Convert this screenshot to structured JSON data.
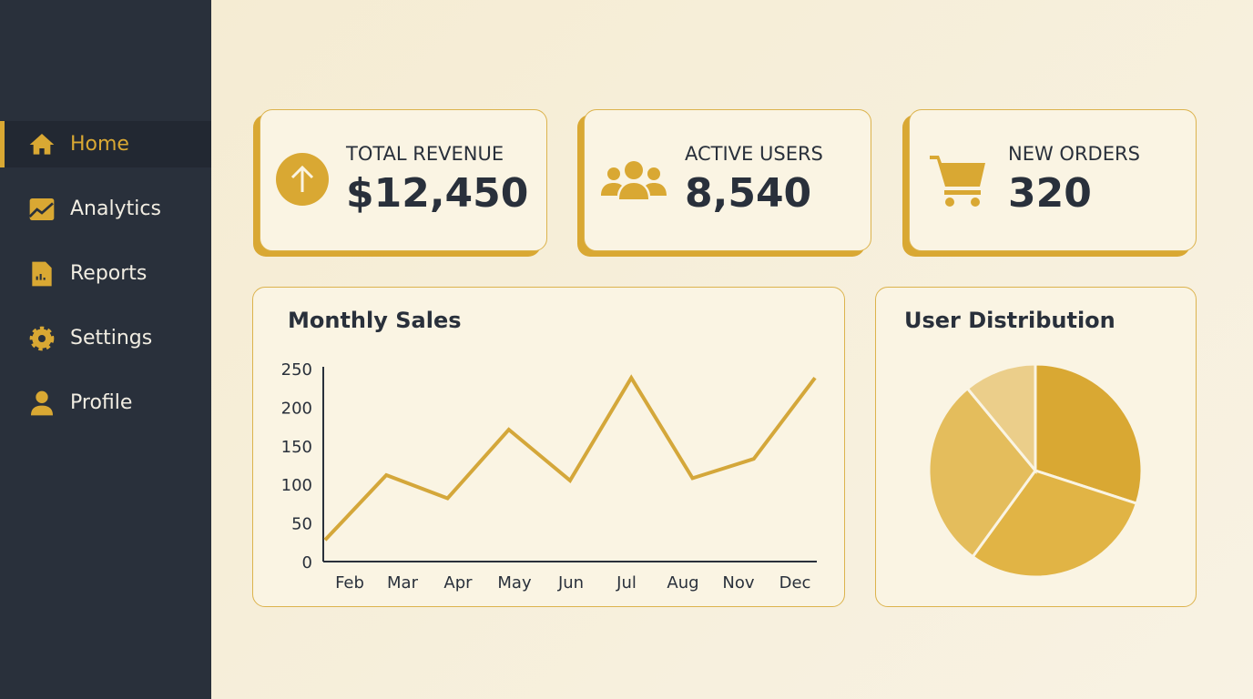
{
  "sidebar": {
    "items": [
      {
        "label": "Home",
        "icon": "home-icon",
        "active": true
      },
      {
        "label": "Analytics",
        "icon": "chart-line-icon"
      },
      {
        "label": "Reports",
        "icon": "report-icon"
      },
      {
        "label": "Settings",
        "icon": "gear-icon"
      },
      {
        "label": "Profile",
        "icon": "user-icon"
      }
    ]
  },
  "stats": [
    {
      "label": "TOTAL REVENUE",
      "value": "$12,450",
      "icon": "arrow-up-circle-icon"
    },
    {
      "label": "ACTIVE USERS",
      "value": "8,540",
      "icon": "users-icon"
    },
    {
      "label": "NEW ORDERS",
      "value": "320",
      "icon": "cart-icon"
    }
  ],
  "colors": {
    "accent": "#d9a833",
    "sidebar": "#29303b",
    "background": "#f6efdc"
  },
  "chart_data": [
    {
      "type": "line",
      "title": "Monthly Sales",
      "categories": [
        "Feb",
        "Mar",
        "Apr",
        "May",
        "Jun",
        "Jul",
        "Aug",
        "Nov",
        "Dec"
      ],
      "values": [
        28,
        112,
        82,
        171,
        105,
        238,
        108,
        133,
        238
      ],
      "ylim": [
        0,
        250
      ],
      "yticks": [
        0,
        50,
        100,
        150,
        200,
        250
      ],
      "grid": false
    },
    {
      "type": "pie",
      "title": "User Distribution",
      "values": [
        30,
        30,
        29,
        11
      ]
    }
  ]
}
